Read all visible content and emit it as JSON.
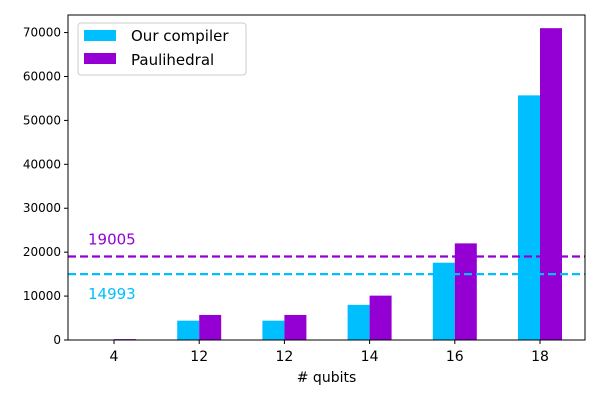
{
  "chart_data": {
    "type": "bar",
    "categories": [
      "4",
      "12",
      "12",
      "14",
      "16",
      "18"
    ],
    "series": [
      {
        "name": "Our compiler",
        "color": "#00bfff",
        "values": [
          0,
          4400,
          4400,
          8000,
          17600,
          55700
        ]
      },
      {
        "name": "Paulihedral",
        "color": "#9400d3",
        "values": [
          200,
          5700,
          5700,
          10100,
          22000,
          71000
        ]
      }
    ],
    "xlabel": "# qubits",
    "ylabel": "",
    "ylim": [
      0,
      74000
    ],
    "yticks": [
      0,
      10000,
      20000,
      30000,
      40000,
      50000,
      60000,
      70000
    ],
    "reference_lines": [
      {
        "value": 19005,
        "label": "19005",
        "color": "#9400d3",
        "style": "dashed"
      },
      {
        "value": 14993,
        "label": "14993",
        "color": "#00bfff",
        "style": "dashed"
      }
    ],
    "legend": "top-left",
    "grid": false
  }
}
